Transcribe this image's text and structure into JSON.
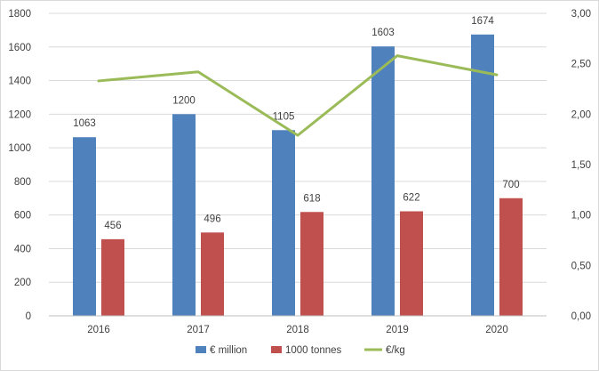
{
  "chart_data": {
    "type": "bar",
    "categories": [
      "2016",
      "2017",
      "2018",
      "2019",
      "2020"
    ],
    "series": [
      {
        "name": "€ million",
        "kind": "bar",
        "axis": "left",
        "color": "#4f81bd",
        "values": [
          1063,
          1200,
          1105,
          1603,
          1674
        ],
        "labels": [
          "1063",
          "1200",
          "1105",
          "1603",
          "1674"
        ]
      },
      {
        "name": "1000 tonnes",
        "kind": "bar",
        "axis": "left",
        "color": "#c0504d",
        "values": [
          456,
          496,
          618,
          622,
          700
        ],
        "labels": [
          "456",
          "496",
          "618",
          "622",
          "700"
        ]
      },
      {
        "name": "€/kg",
        "kind": "line",
        "axis": "right",
        "color": "#9bbb59",
        "values": [
          2.33,
          2.42,
          1.79,
          2.58,
          2.39
        ]
      }
    ],
    "ylim": [
      0,
      1800
    ],
    "y_ticks": [
      "0",
      "200",
      "400",
      "600",
      "800",
      "1000",
      "1200",
      "1400",
      "1600",
      "1800"
    ],
    "y2lim": [
      0,
      3
    ],
    "y2_ticks": [
      "0,00",
      "0,50",
      "1,00",
      "1,50",
      "2,00",
      "2,50",
      "3,00"
    ],
    "grid": true,
    "legend_position": "bottom"
  }
}
